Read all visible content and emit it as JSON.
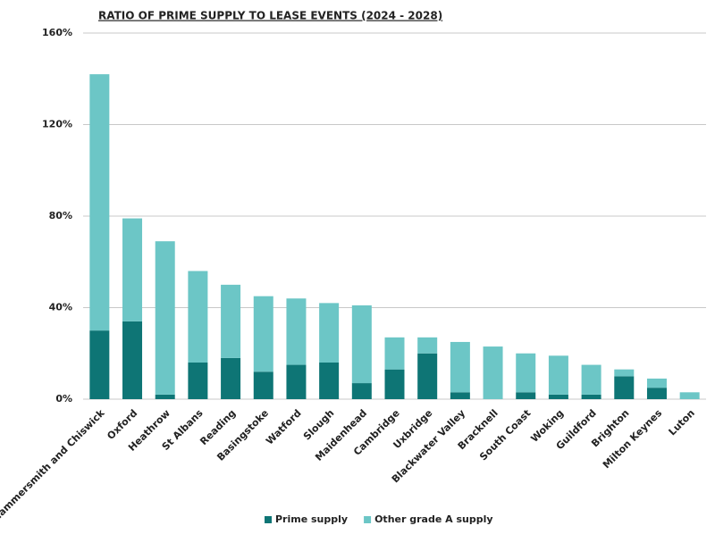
{
  "chart_data": {
    "type": "stacked-bar",
    "title": "RATIO OF PRIME SUPPLY TO LEASE EVENTS (2024 - 2028)",
    "categories": [
      "Hammersmith and Chiswick",
      "Oxford",
      "Heathrow",
      "St Albans",
      "Reading",
      "Basingstoke",
      "Watford",
      "Slough",
      "Maidenhead",
      "Cambridge",
      "Uxbridge",
      "Blackwater Valley",
      "Bracknell",
      "South Coast",
      "Woking",
      "Guildford",
      "Brighton",
      "Milton Keynes",
      "Luton"
    ],
    "series": [
      {
        "name": "Prime supply",
        "color": "#0e7575",
        "values": [
          30,
          34,
          2,
          16,
          18,
          12,
          15,
          16,
          7,
          13,
          20,
          3,
          0,
          3,
          2,
          2,
          10,
          5,
          0
        ]
      },
      {
        "name": "Other grade A supply",
        "color": "#6cc6c6",
        "values": [
          112,
          45,
          67,
          40,
          32,
          33,
          29,
          26,
          34,
          14,
          7,
          22,
          23,
          17,
          17,
          13,
          3,
          4,
          3
        ]
      }
    ],
    "ylim": [
      0,
      160
    ],
    "yticks": [
      {
        "value": 0,
        "label": "0%"
      },
      {
        "value": 40,
        "label": "40%"
      },
      {
        "value": 80,
        "label": "80%"
      },
      {
        "value": 120,
        "label": "120%"
      },
      {
        "value": 160,
        "label": "160%"
      }
    ],
    "grid": true
  }
}
